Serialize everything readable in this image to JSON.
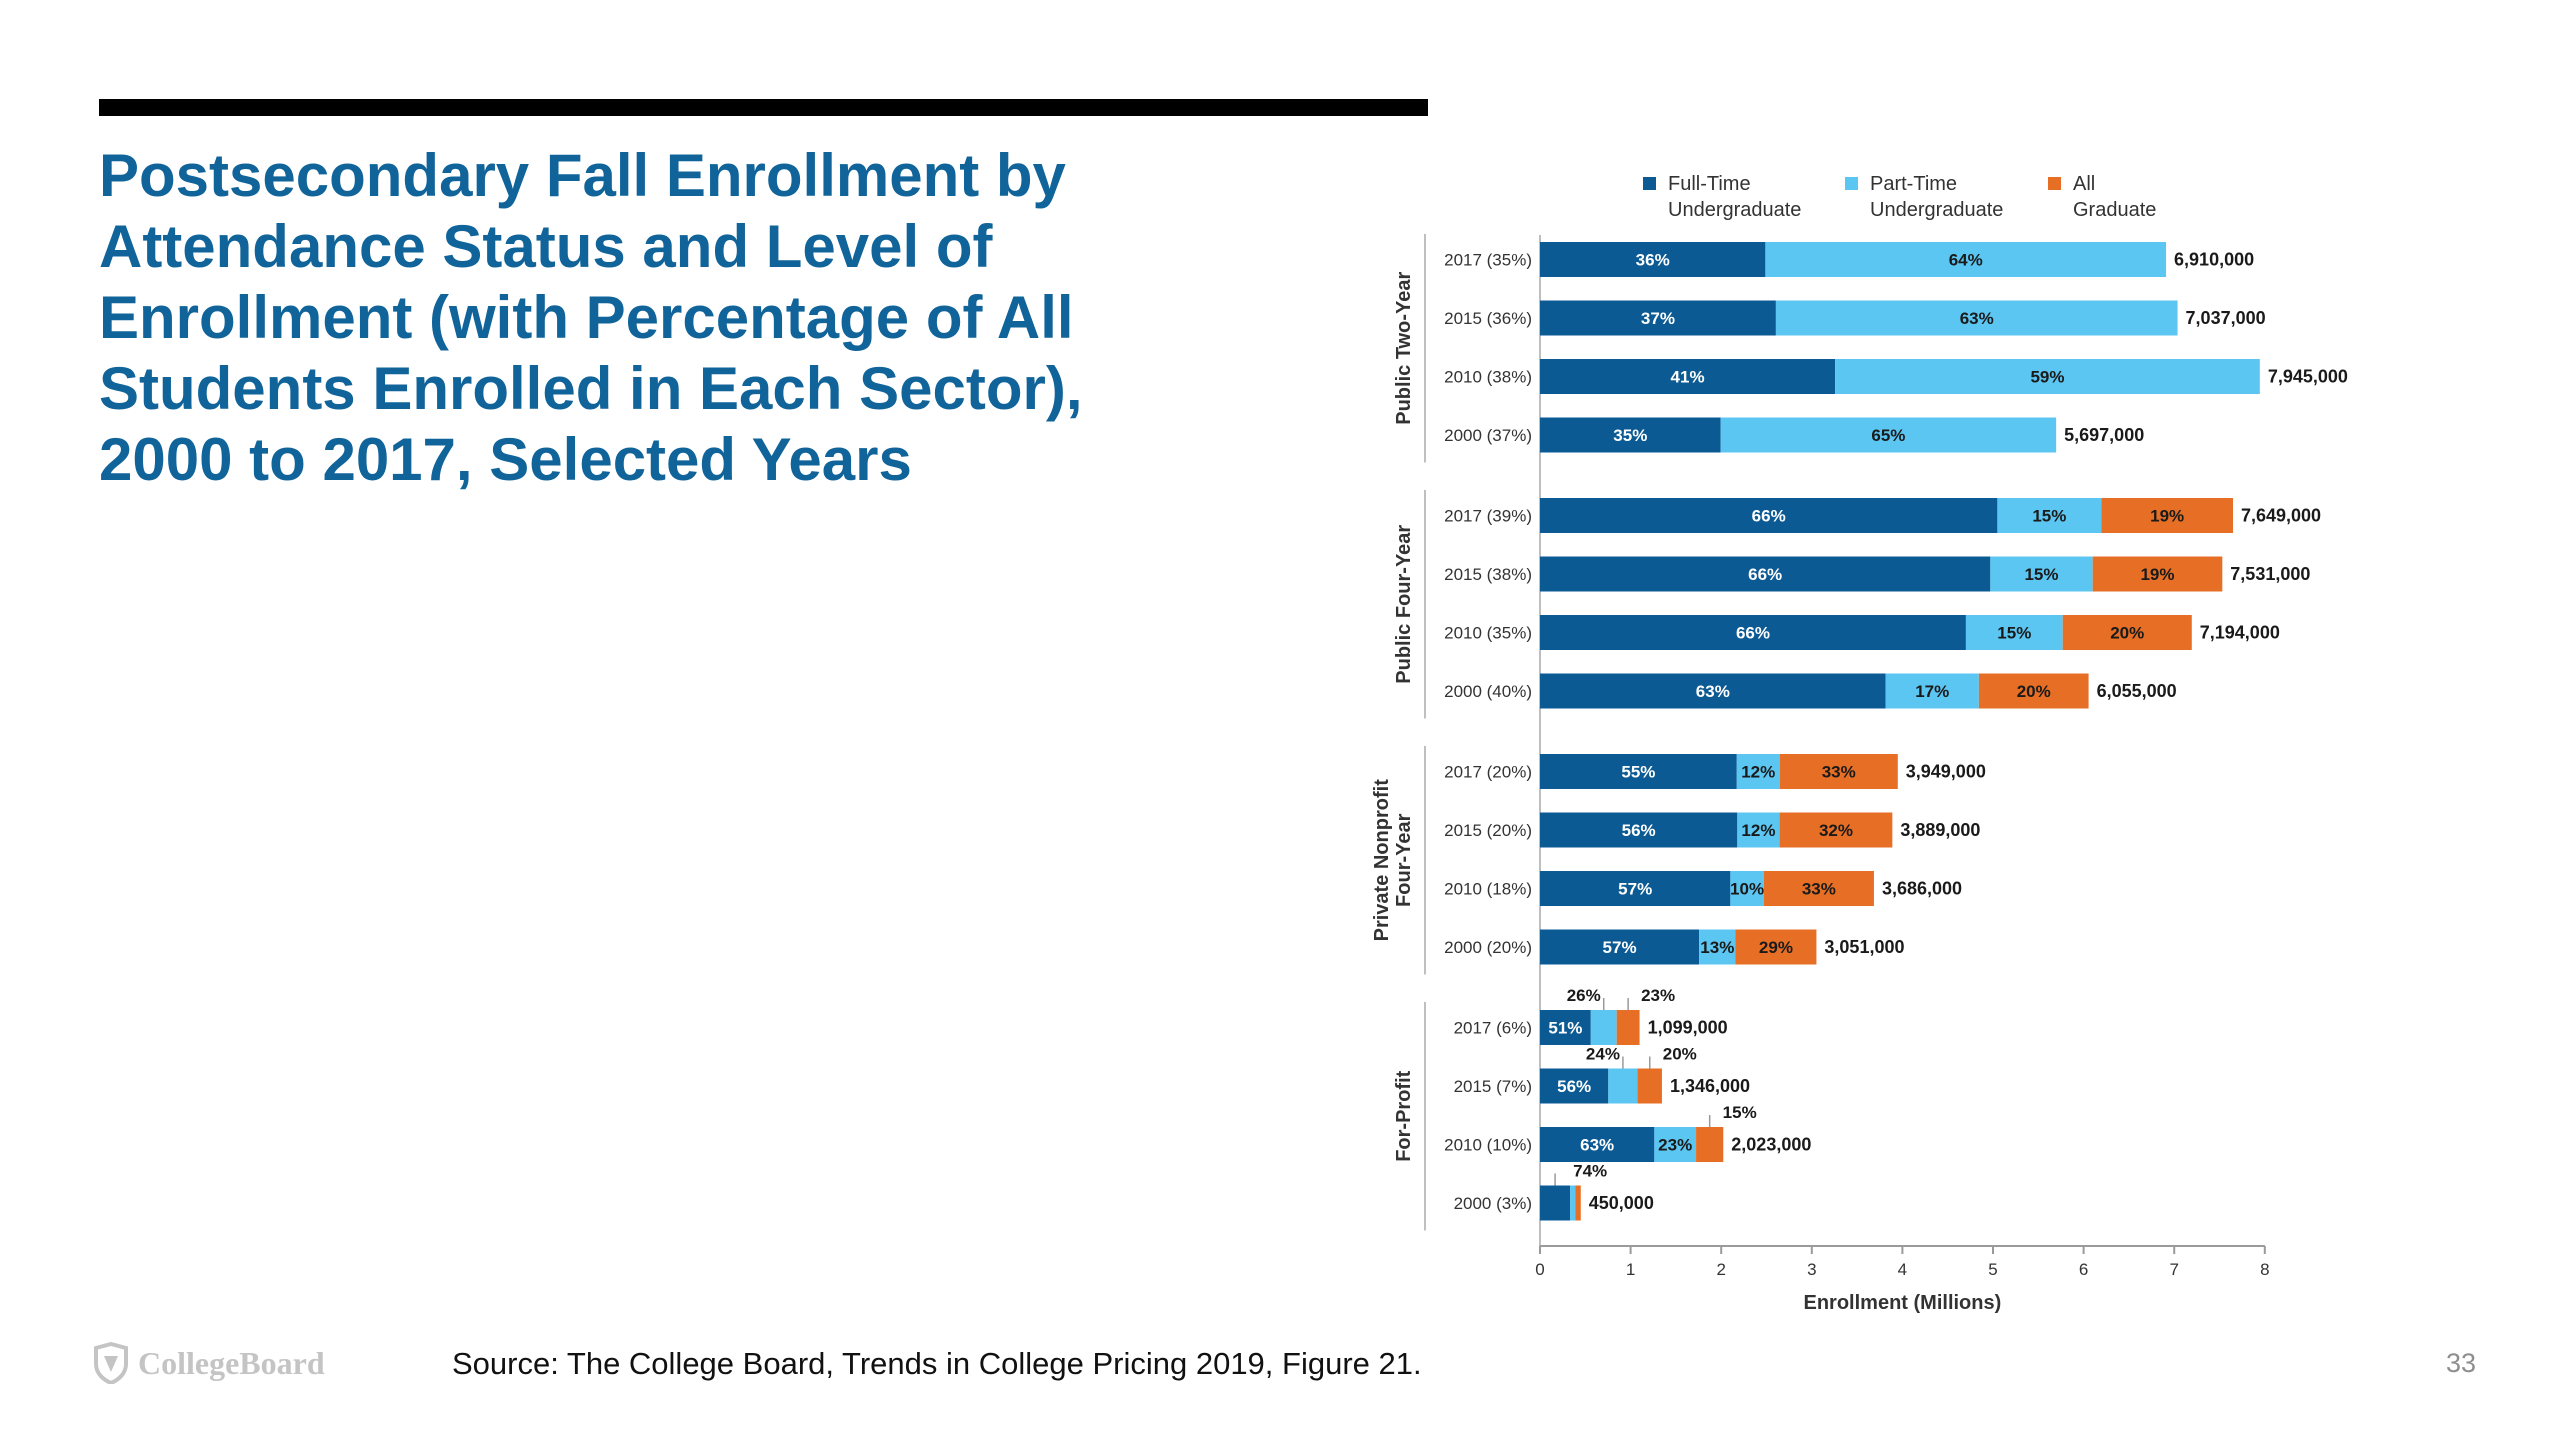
{
  "slide": {
    "title": "Postsecondary Fall Enrollment by Attendance Status and Level of Enrollment (with Percentage of All Students Enrolled in Each Sector), 2000 to 2017, Selected Years",
    "source": "Source: The College Board, Trends in College Pricing 2019, Figure 21.",
    "page_number": "33",
    "logo_text": "CollegeBoard"
  },
  "chart_data": {
    "type": "bar",
    "orientation": "horizontal",
    "stacked": true,
    "xlabel": "Enrollment (Millions)",
    "xlim": [
      0,
      8
    ],
    "xticks": [
      0,
      1,
      2,
      3,
      4,
      5,
      6,
      7,
      8
    ],
    "legend_position": "top",
    "series": [
      {
        "name": [
          "Full-Time",
          "Undergraduate"
        ],
        "color": "#0b5a94"
      },
      {
        "name": [
          "Part-Time",
          "Undergraduate"
        ],
        "color": "#5bc6f2"
      },
      {
        "name": [
          "All",
          "Graduate"
        ],
        "color": "#e66f25"
      }
    ],
    "groups": [
      {
        "name": [
          "Public Two-Year"
        ],
        "rows": [
          {
            "label": "2017 (35%)",
            "total": 6910000,
            "total_label": "6,910,000",
            "shares": [
              36,
              64,
              0
            ],
            "labels": [
              "36%",
              "64%",
              ""
            ]
          },
          {
            "label": "2015 (36%)",
            "total": 7037000,
            "total_label": "7,037,000",
            "shares": [
              37,
              63,
              0
            ],
            "labels": [
              "37%",
              "63%",
              ""
            ]
          },
          {
            "label": "2010 (38%)",
            "total": 7945000,
            "total_label": "7,945,000",
            "shares": [
              41,
              59,
              0
            ],
            "labels": [
              "41%",
              "59%",
              ""
            ]
          },
          {
            "label": "2000 (37%)",
            "total": 5697000,
            "total_label": "5,697,000",
            "shares": [
              35,
              65,
              0
            ],
            "labels": [
              "35%",
              "65%",
              ""
            ]
          }
        ]
      },
      {
        "name": [
          "Public Four-Year"
        ],
        "rows": [
          {
            "label": "2017 (39%)",
            "total": 7649000,
            "total_label": "7,649,000",
            "shares": [
              66,
              15,
              19
            ],
            "labels": [
              "66%",
              "15%",
              "19%"
            ]
          },
          {
            "label": "2015 (38%)",
            "total": 7531000,
            "total_label": "7,531,000",
            "shares": [
              66,
              15,
              19
            ],
            "labels": [
              "66%",
              "15%",
              "19%"
            ]
          },
          {
            "label": "2010 (35%)",
            "total": 7194000,
            "total_label": "7,194,000",
            "shares": [
              66,
              15,
              20
            ],
            "labels": [
              "66%",
              "15%",
              "20%"
            ]
          },
          {
            "label": "2000 (40%)",
            "total": 6055000,
            "total_label": "6,055,000",
            "shares": [
              63,
              17,
              20
            ],
            "labels": [
              "63%",
              "17%",
              "20%"
            ]
          }
        ]
      },
      {
        "name": [
          "Private Nonprofit",
          "Four-Year"
        ],
        "rows": [
          {
            "label": "2017 (20%)",
            "total": 3949000,
            "total_label": "3,949,000",
            "shares": [
              55,
              12,
              33
            ],
            "labels": [
              "55%",
              "12%",
              "33%"
            ]
          },
          {
            "label": "2015 (20%)",
            "total": 3889000,
            "total_label": "3,889,000",
            "shares": [
              56,
              12,
              32
            ],
            "labels": [
              "56%",
              "12%",
              "32%"
            ]
          },
          {
            "label": "2010 (18%)",
            "total": 3686000,
            "total_label": "3,686,000",
            "shares": [
              57,
              10,
              33
            ],
            "labels": [
              "57%",
              "10%",
              "33%"
            ]
          },
          {
            "label": "2000 (20%)",
            "total": 3051000,
            "total_label": "3,051,000",
            "shares": [
              57,
              13,
              29
            ],
            "labels": [
              "57%",
              "13%",
              "29%"
            ]
          }
        ]
      },
      {
        "name": [
          "For-Profit"
        ],
        "rows": [
          {
            "label": "2017 (6%)",
            "total": 1099000,
            "total_label": "1,099,000",
            "shares": [
              51,
              26,
              23
            ],
            "labels": [
              "51%",
              "",
              ""
            ],
            "callouts": [
              "",
              "26%",
              "23%"
            ]
          },
          {
            "label": "2015 (7%)",
            "total": 1346000,
            "total_label": "1,346,000",
            "shares": [
              56,
              24,
              20
            ],
            "labels": [
              "56%",
              "",
              ""
            ],
            "callouts": [
              "",
              "24%",
              "20%"
            ]
          },
          {
            "label": "2010 (10%)",
            "total": 2023000,
            "total_label": "2,023,000",
            "shares": [
              63,
              23,
              15
            ],
            "labels": [
              "63%",
              "23%",
              ""
            ],
            "callouts": [
              "",
              "",
              "15%"
            ]
          },
          {
            "label": "2000 (3%)",
            "total": 450000,
            "total_label": "450,000",
            "shares": [
              74,
              13,
              13
            ],
            "labels": [
              "",
              "",
              ""
            ],
            "callouts": [
              "74%",
              "",
              ""
            ]
          }
        ]
      }
    ]
  }
}
